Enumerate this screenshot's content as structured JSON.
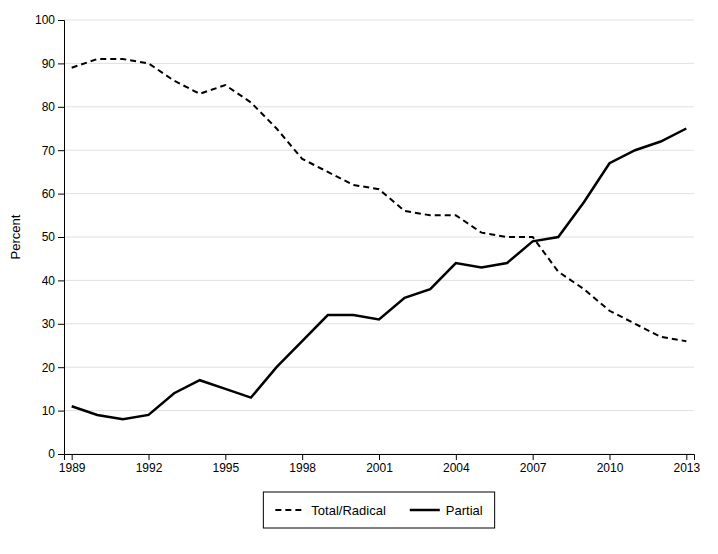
{
  "chart_data": {
    "type": "line",
    "ylabel": "Percent",
    "x": [
      1989,
      1990,
      1991,
      1992,
      1993,
      1994,
      1995,
      1996,
      1997,
      1998,
      1999,
      2000,
      2001,
      2002,
      2003,
      2004,
      2005,
      2006,
      2007,
      2008,
      2009,
      2010,
      2011,
      2012,
      2013
    ],
    "series": [
      {
        "name": "Total/Radical",
        "color": "#000000",
        "line_style": "dashed",
        "values": [
          89,
          91,
          91,
          90,
          86,
          83,
          85,
          81,
          75,
          68,
          65,
          62,
          61,
          56,
          55,
          55,
          51,
          50,
          50,
          42,
          38,
          33,
          30,
          27,
          26
        ]
      },
      {
        "name": "Partial",
        "color": "#000000",
        "line_style": "solid",
        "values": [
          11,
          9,
          8,
          9,
          14,
          17,
          15,
          13,
          20,
          26,
          32,
          32,
          31,
          36,
          38,
          44,
          43,
          44,
          49,
          50,
          58,
          67,
          70,
          72,
          75
        ]
      }
    ],
    "xlim": [
      1988.7,
      2013.3
    ],
    "xticks": [
      1989,
      1992,
      1995,
      1998,
      2001,
      2004,
      2007,
      2010,
      2013
    ],
    "ylim": [
      0,
      100
    ],
    "yticks": [
      0,
      10,
      20,
      30,
      40,
      50,
      60,
      70,
      80,
      90,
      100
    ],
    "grid": "y",
    "legend": "bottom"
  }
}
